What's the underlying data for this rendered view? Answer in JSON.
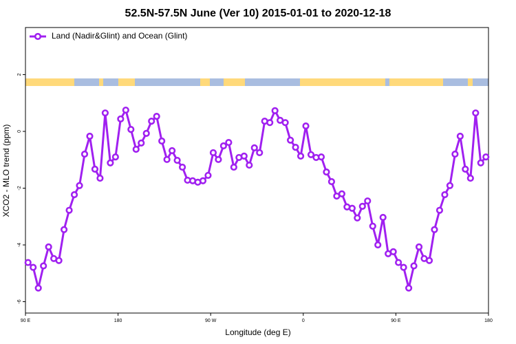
{
  "chart_data": {
    "type": "line",
    "title": "52.5N-57.5N June (Ver 10)   2015-01-01 to 2020-12-18",
    "x_label": "Longitude (deg E)",
    "y_label": "XCO2 - MLO trend (ppm)",
    "xlim": [
      90,
      540
    ],
    "ylim": [
      -6.4,
      3.66
    ],
    "xticks": [
      {
        "value": 90,
        "label": "90 E"
      },
      180,
      {
        "value": 270,
        "label": "90 W"
      },
      {
        "value": 360,
        "label": "0"
      },
      {
        "value": 450,
        "label": "90 E"
      },
      {
        "value": 540,
        "label": "180"
      }
    ],
    "yticks": [
      -6,
      -4,
      -2,
      0,
      2
    ],
    "legend": "top-left",
    "x": [
      92.5,
      97.5,
      102.5,
      107.5,
      112.5,
      117.5,
      122.5,
      127.5,
      132.5,
      137.5,
      142.5,
      147.5,
      152.5,
      157.5,
      162.5,
      167.5,
      172.5,
      177.5,
      182.5,
      187.5,
      192.5,
      197.5,
      202.5,
      207.5,
      212.5,
      217.5,
      222.5,
      227.5,
      232.5,
      237.5,
      242.5,
      247.5,
      252.5,
      257.5,
      262.5,
      267.5,
      272.5,
      277.5,
      282.5,
      287.5,
      292.5,
      297.5,
      302.5,
      307.5,
      312.5,
      317.5,
      322.5,
      327.5,
      332.5,
      337.5,
      342.5,
      347.5,
      352.5,
      357.5,
      362.5,
      367.5,
      372.5,
      377.5,
      382.5,
      387.5,
      392.5,
      397.5,
      402.5,
      407.5,
      412.5,
      417.5,
      422.5,
      427.5,
      432.5,
      437.5,
      442.5,
      447.5,
      452.5,
      457.5,
      462.5,
      467.5,
      472.5,
      477.5,
      482.5,
      487.5,
      492.5,
      497.5,
      502.5,
      507.5,
      512.5,
      517.5,
      522.5,
      527.5,
      532.5,
      537.5
    ],
    "series": [
      {
        "name": "Land (Nadir&Glint) and Ocean (Glint)",
        "color": "#a020f0",
        "values": [
          -4.62,
          -4.79,
          -5.52,
          -4.74,
          -4.07,
          -4.48,
          -4.55,
          -3.46,
          -2.78,
          -2.23,
          -1.91,
          -0.8,
          -0.17,
          -1.33,
          -1.65,
          0.65,
          -1.11,
          -0.9,
          0.44,
          0.75,
          0.07,
          -0.63,
          -0.41,
          -0.07,
          0.36,
          0.53,
          -0.34,
          -0.99,
          -0.68,
          -1.02,
          -1.26,
          -1.72,
          -1.74,
          -1.79,
          -1.74,
          -1.55,
          -0.75,
          -0.99,
          -0.51,
          -0.39,
          -1.26,
          -0.92,
          -0.87,
          -1.19,
          -0.58,
          -0.75,
          0.36,
          0.31,
          0.73,
          0.39,
          0.31,
          -0.31,
          -0.56,
          -0.87,
          0.19,
          -0.82,
          -0.92,
          -0.9,
          -1.43,
          -1.77,
          -2.28,
          -2.2,
          -2.66,
          -2.71,
          -3.05,
          -2.64,
          -2.45,
          -3.34,
          -4.0,
          -3.03,
          -4.31,
          -4.24,
          -4.62,
          -4.79,
          -5.52,
          -4.74,
          -4.07,
          -4.48,
          -4.55,
          -3.46,
          -2.78,
          -2.23,
          -1.91,
          -0.8,
          -0.17,
          -1.33,
          -1.65,
          0.65,
          -1.11,
          -0.9
        ]
      }
    ]
  }
}
